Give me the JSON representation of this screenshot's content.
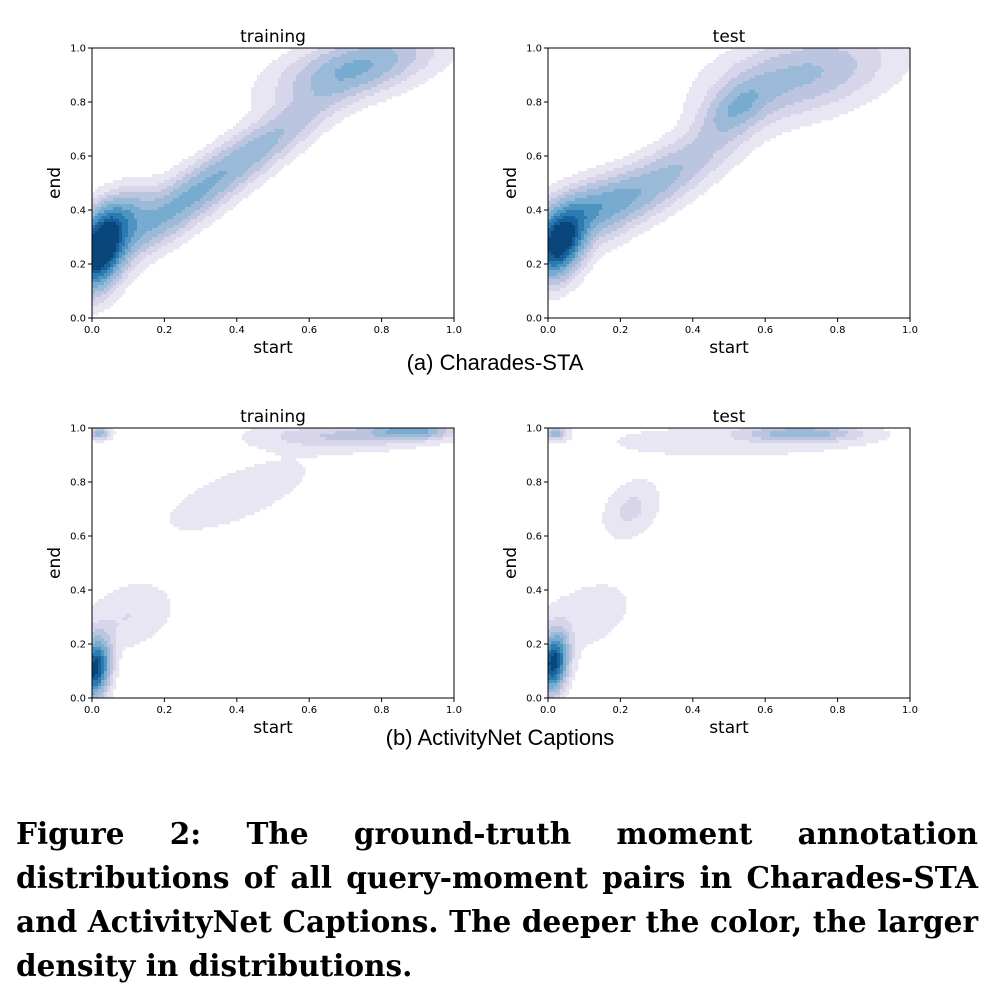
{
  "colors": {
    "density_ramp": [
      "#e8e6f2",
      "#d6d5ea",
      "#bcc5e0",
      "#9bbad8",
      "#78abd0",
      "#4d94c1",
      "#2c7ab2",
      "#175f9a",
      "#0a4679"
    ]
  },
  "subcaptions": [
    "(a) Charades-STA",
    "(b) ActivityNet Captions"
  ],
  "caption": "Figure 2: The ground-truth moment annotation distributions of all query-moment pairs in Charades-STA and ActivityNet Captions. The deeper the color, the larger density in distributions.",
  "chart_data": [
    {
      "type": "heatmap",
      "title": "training",
      "dataset": "(a) Charades-STA",
      "xlabel": "start",
      "ylabel": "end",
      "xlim": [
        0,
        1
      ],
      "ylim": [
        0,
        1
      ],
      "xticks": [
        "0.0",
        "0.2",
        "0.4",
        "0.6",
        "0.8",
        "1.0"
      ],
      "yticks": [
        "0.0",
        "0.2",
        "0.4",
        "0.6",
        "0.8",
        "1.0"
      ],
      "density_components": [
        {
          "x": 0.02,
          "y": 0.24,
          "sx": 0.045,
          "sy": 0.09,
          "rho": 0.3,
          "w": 1.0
        },
        {
          "x": 0.06,
          "y": 0.36,
          "sx": 0.06,
          "sy": 0.07,
          "rho": 0.5,
          "w": 0.45
        },
        {
          "x": 0.2,
          "y": 0.38,
          "sx": 0.13,
          "sy": 0.13,
          "rho": 0.85,
          "w": 0.35
        },
        {
          "x": 0.45,
          "y": 0.62,
          "sx": 0.15,
          "sy": 0.15,
          "rho": 0.9,
          "w": 0.3
        },
        {
          "x": 0.73,
          "y": 0.93,
          "sx": 0.13,
          "sy": 0.08,
          "rho": 0.5,
          "w": 0.4
        }
      ]
    },
    {
      "type": "heatmap",
      "title": "test",
      "dataset": "(a) Charades-STA",
      "xlabel": "start",
      "ylabel": "end",
      "xlim": [
        0,
        1
      ],
      "ylim": [
        0,
        1
      ],
      "xticks": [
        "0.0",
        "0.2",
        "0.4",
        "0.6",
        "0.8",
        "1.0"
      ],
      "yticks": [
        "0.0",
        "0.2",
        "0.4",
        "0.6",
        "0.8",
        "1.0"
      ],
      "density_components": [
        {
          "x": 0.03,
          "y": 0.27,
          "sx": 0.045,
          "sy": 0.08,
          "rho": 0.3,
          "w": 1.0
        },
        {
          "x": 0.1,
          "y": 0.4,
          "sx": 0.1,
          "sy": 0.08,
          "rho": 0.6,
          "w": 0.4
        },
        {
          "x": 0.3,
          "y": 0.5,
          "sx": 0.15,
          "sy": 0.14,
          "rho": 0.85,
          "w": 0.3
        },
        {
          "x": 0.52,
          "y": 0.78,
          "sx": 0.06,
          "sy": 0.07,
          "rho": 0.5,
          "w": 0.3
        },
        {
          "x": 0.7,
          "y": 0.9,
          "sx": 0.15,
          "sy": 0.1,
          "rho": 0.4,
          "w": 0.3
        }
      ]
    },
    {
      "type": "heatmap",
      "title": "training",
      "dataset": "(b) ActivityNet Captions",
      "xlabel": "start",
      "ylabel": "end",
      "xlim": [
        0,
        1
      ],
      "ylim": [
        0,
        1
      ],
      "xticks": [
        "0.0",
        "0.2",
        "0.4",
        "0.6",
        "0.8",
        "1.0"
      ],
      "yticks": [
        "0.0",
        "0.2",
        "0.4",
        "0.6",
        "0.8",
        "1.0"
      ],
      "density_components": [
        {
          "x": 0.01,
          "y": 0.11,
          "sx": 0.025,
          "sy": 0.07,
          "rho": 0.2,
          "w": 1.0
        },
        {
          "x": 0.02,
          "y": 0.98,
          "sx": 0.02,
          "sy": 0.015,
          "rho": 0,
          "w": 0.35
        },
        {
          "x": 0.88,
          "y": 0.99,
          "sx": 0.07,
          "sy": 0.02,
          "rho": 0,
          "w": 0.45
        },
        {
          "x": 0.7,
          "y": 0.97,
          "sx": 0.15,
          "sy": 0.03,
          "rho": 0,
          "w": 0.18
        },
        {
          "x": 0.1,
          "y": 0.3,
          "sx": 0.08,
          "sy": 0.08,
          "rho": 0.3,
          "w": 0.1
        },
        {
          "x": 0.4,
          "y": 0.75,
          "sx": 0.22,
          "sy": 0.15,
          "rho": 0.7,
          "w": 0.05
        }
      ]
    },
    {
      "type": "heatmap",
      "title": "test",
      "dataset": "(b) ActivityNet Captions",
      "xlabel": "start",
      "ylabel": "end",
      "xlim": [
        0,
        1
      ],
      "ylim": [
        0,
        1
      ],
      "xticks": [
        "0.0",
        "0.2",
        "0.4",
        "0.6",
        "0.8",
        "1.0"
      ],
      "yticks": [
        "0.0",
        "0.2",
        "0.4",
        "0.6",
        "0.8",
        "1.0"
      ],
      "density_components": [
        {
          "x": 0.015,
          "y": 0.13,
          "sx": 0.025,
          "sy": 0.07,
          "rho": 0.2,
          "w": 1.0
        },
        {
          "x": 0.02,
          "y": 0.98,
          "sx": 0.02,
          "sy": 0.015,
          "rho": 0,
          "w": 0.35
        },
        {
          "x": 0.7,
          "y": 0.98,
          "sx": 0.1,
          "sy": 0.02,
          "rho": 0,
          "w": 0.35
        },
        {
          "x": 0.23,
          "y": 0.7,
          "sx": 0.05,
          "sy": 0.07,
          "rho": 0.3,
          "w": 0.12
        },
        {
          "x": 0.1,
          "y": 0.3,
          "sx": 0.1,
          "sy": 0.1,
          "rho": 0.4,
          "w": 0.07
        },
        {
          "x": 0.5,
          "y": 0.95,
          "sx": 0.3,
          "sy": 0.05,
          "rho": 0,
          "w": 0.06
        }
      ]
    }
  ]
}
